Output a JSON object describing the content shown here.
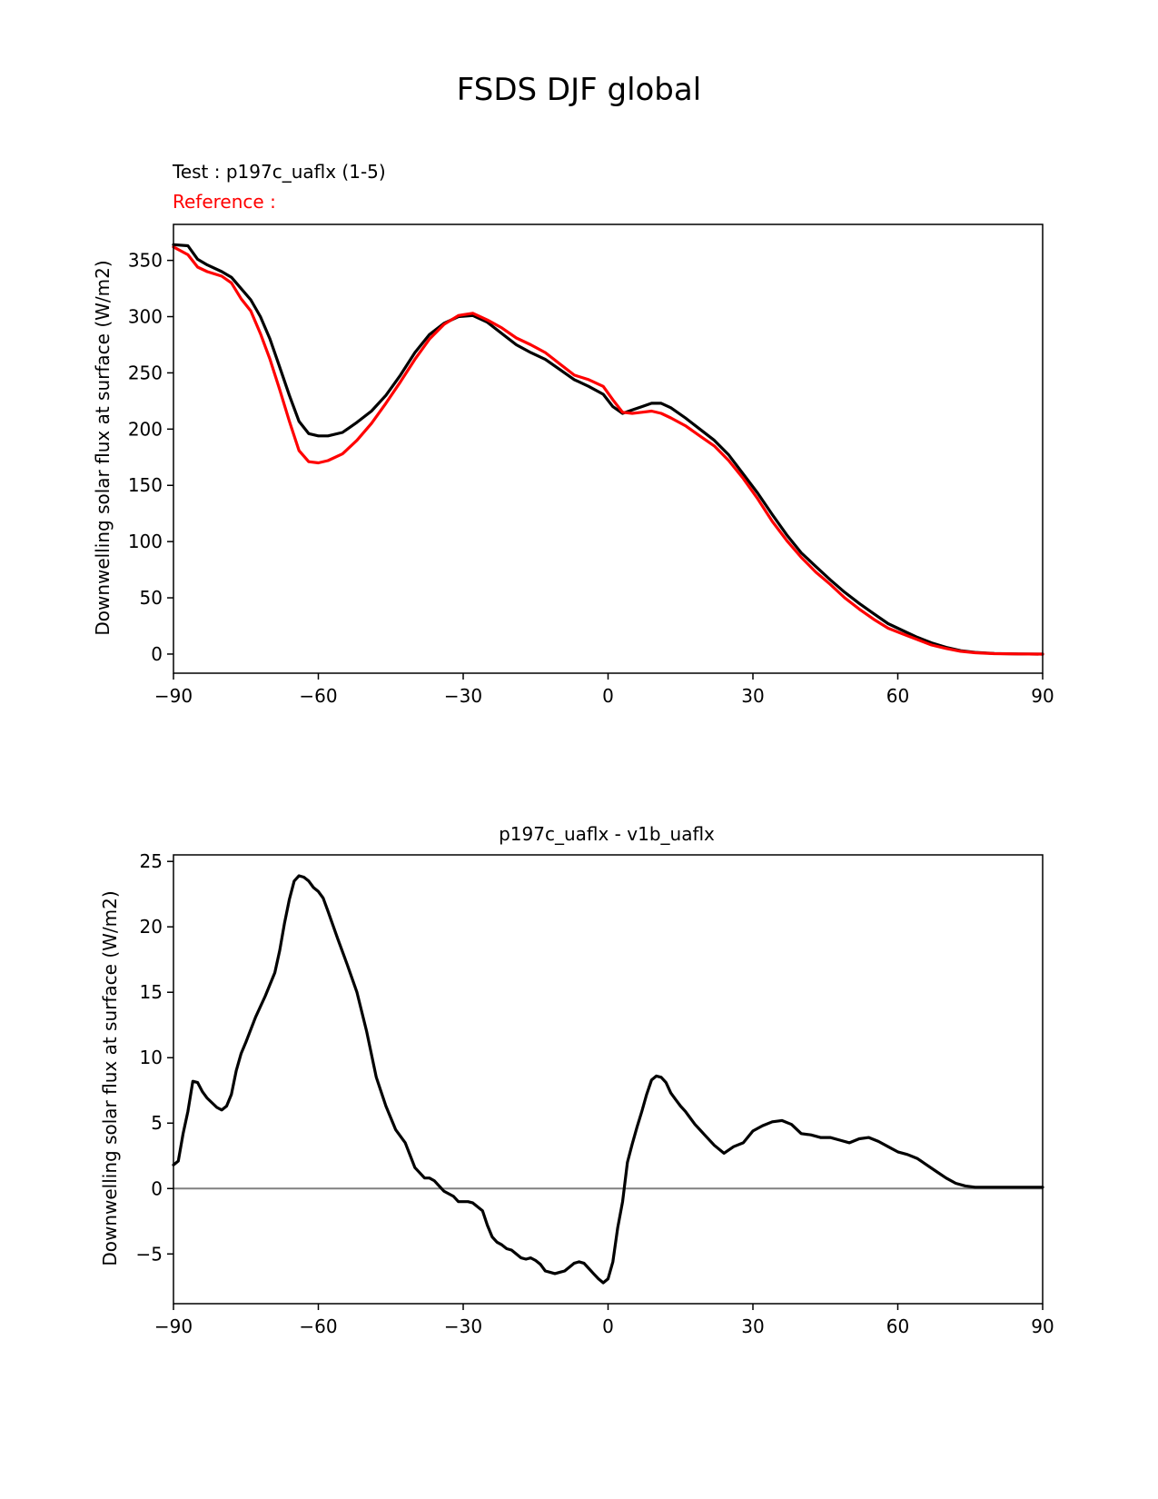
{
  "figure": {
    "title": "FSDS DJF global"
  },
  "chart_data": [
    {
      "type": "line",
      "test_label": "Test : p197c_uaflx (1-5)",
      "reference_label": "Reference :",
      "ylabel": "Downwelling solar flux at surface (W/m2)",
      "xlim": [
        -90,
        90
      ],
      "ylim": [
        -17,
        382
      ],
      "xticks": [
        -90,
        -60,
        -30,
        0,
        30,
        60,
        90
      ],
      "xtick_labels": [
        "−90",
        "−60",
        "−30",
        "0",
        "30",
        "60",
        "90"
      ],
      "yticks": [
        0,
        50,
        100,
        150,
        200,
        250,
        300,
        350
      ],
      "ytick_labels": [
        "0",
        "50",
        "100",
        "150",
        "200",
        "250",
        "300",
        "350"
      ],
      "grid": false,
      "series": [
        {
          "color": "#000000",
          "x": [
            -90,
            -87,
            -85,
            -83,
            -80,
            -78,
            -76,
            -74,
            -72,
            -70,
            -68,
            -66,
            -64,
            -62,
            -60,
            -58,
            -55,
            -52,
            -49,
            -46,
            -43,
            -40,
            -37,
            -34,
            -31,
            -28,
            -25,
            -22,
            -19,
            -16,
            -13,
            -10,
            -7,
            -4,
            -1,
            1,
            3,
            5,
            7,
            9,
            11,
            13,
            16,
            19,
            22,
            25,
            28,
            31,
            34,
            37,
            40,
            43,
            46,
            49,
            52,
            55,
            58,
            61,
            64,
            67,
            70,
            73,
            76,
            80,
            85,
            90
          ],
          "y": [
            364,
            363,
            351,
            346,
            340,
            335,
            325,
            315,
            300,
            280,
            255,
            230,
            207,
            196,
            194,
            194,
            197,
            206,
            216,
            230,
            248,
            268,
            284,
            294,
            300,
            301,
            295,
            285,
            275,
            268,
            262,
            253,
            244,
            238,
            231,
            220,
            214,
            217,
            220,
            223,
            223,
            219,
            210,
            200,
            190,
            177,
            160,
            143,
            124,
            106,
            90,
            78,
            66,
            55,
            45,
            36,
            27,
            21,
            15,
            10,
            6,
            3,
            1.5,
            0.5,
            0.1,
            0
          ]
        },
        {
          "color": "#ff0000",
          "x": [
            -90,
            -87,
            -85,
            -83,
            -80,
            -78,
            -76,
            -74,
            -72,
            -70,
            -68,
            -66,
            -64,
            -62,
            -60,
            -58,
            -55,
            -52,
            -49,
            -46,
            -43,
            -40,
            -37,
            -34,
            -31,
            -28,
            -25,
            -22,
            -19,
            -16,
            -13,
            -10,
            -7,
            -4,
            -1,
            1,
            3,
            5,
            7,
            9,
            11,
            13,
            16,
            19,
            22,
            25,
            28,
            31,
            34,
            37,
            40,
            43,
            46,
            49,
            52,
            55,
            58,
            61,
            64,
            67,
            70,
            73,
            76,
            80,
            85,
            90
          ],
          "y": [
            362,
            355,
            344,
            340,
            336,
            330,
            316,
            305,
            285,
            262,
            235,
            207,
            181,
            171,
            170,
            172,
            178,
            190,
            205,
            223,
            242,
            262,
            280,
            293,
            301,
            303,
            297,
            290,
            281,
            275,
            268,
            258,
            248,
            244,
            238,
            226,
            215,
            214,
            215,
            216,
            214,
            210,
            203,
            194,
            185,
            172,
            156,
            138,
            118,
            101,
            86,
            73,
            62,
            50,
            40,
            31,
            23,
            18,
            13,
            8,
            5,
            2.5,
            1.2,
            0.4,
            0.1,
            0
          ]
        }
      ]
    },
    {
      "type": "line",
      "title": "p197c_uaflx - v1b_uaflx",
      "ylabel": "Downwelling solar flux at surface (W/m2)",
      "xlim": [
        -90,
        90
      ],
      "ylim": [
        -8.8,
        25.5
      ],
      "xticks": [
        -90,
        -60,
        -30,
        0,
        30,
        60,
        90
      ],
      "xtick_labels": [
        "−90",
        "−60",
        "−30",
        "0",
        "30",
        "60",
        "90"
      ],
      "yticks": [
        -5,
        0,
        5,
        10,
        15,
        20,
        25
      ],
      "ytick_labels": [
        "−5",
        "0",
        "5",
        "10",
        "15",
        "20",
        "25"
      ],
      "zero_line": 0,
      "grid": false,
      "series": [
        {
          "color": "#000000",
          "x": [
            -90,
            -89,
            -88,
            -87,
            -86,
            -85,
            -84,
            -83,
            -81,
            -80,
            -79,
            -78,
            -77,
            -76,
            -75,
            -73,
            -71,
            -69,
            -68,
            -67,
            -66,
            -65,
            -64,
            -63,
            -62,
            -61,
            -60,
            -59,
            -58,
            -56,
            -54,
            -52,
            -50,
            -48,
            -46,
            -44,
            -42,
            -40,
            -38,
            -37,
            -36,
            -34,
            -32,
            -31,
            -30,
            -29,
            -28,
            -26,
            -25,
            -24,
            -23,
            -22,
            -21,
            -20,
            -18,
            -17,
            -16,
            -15,
            -14,
            -13,
            -12,
            -11,
            -10,
            -9,
            -8,
            -7,
            -6,
            -5,
            -4,
            -3,
            -2,
            -1,
            0,
            1,
            2,
            3,
            4,
            5,
            6,
            7,
            8,
            9,
            10,
            11,
            12,
            13,
            14,
            15,
            16,
            17,
            18,
            19,
            20,
            22,
            24,
            26,
            28,
            30,
            32,
            34,
            36,
            38,
            40,
            42,
            44,
            46,
            48,
            50,
            52,
            54,
            56,
            58,
            60,
            62,
            64,
            66,
            68,
            70,
            72,
            74,
            76,
            80,
            85,
            90
          ],
          "y": [
            1.8,
            2.1,
            4.2,
            5.9,
            8.2,
            8.1,
            7.4,
            6.9,
            6.2,
            6.0,
            6.3,
            7.2,
            9.0,
            10.3,
            11.2,
            13.1,
            14.7,
            16.5,
            18.2,
            20.3,
            22.1,
            23.5,
            23.9,
            23.8,
            23.5,
            23.0,
            22.7,
            22.2,
            21.2,
            19.1,
            17.1,
            15.0,
            12.0,
            8.5,
            6.3,
            4.5,
            3.5,
            1.6,
            0.8,
            0.8,
            0.6,
            -0.2,
            -0.6,
            -1.0,
            -1.0,
            -1.0,
            -1.1,
            -1.7,
            -2.8,
            -3.7,
            -4.1,
            -4.3,
            -4.6,
            -4.7,
            -5.3,
            -5.4,
            -5.3,
            -5.5,
            -5.8,
            -6.3,
            -6.4,
            -6.5,
            -6.4,
            -6.3,
            -6.0,
            -5.7,
            -5.6,
            -5.7,
            -6.1,
            -6.5,
            -6.9,
            -7.2,
            -6.9,
            -5.6,
            -3.0,
            -1.0,
            2.0,
            3.4,
            4.7,
            5.9,
            7.2,
            8.3,
            8.6,
            8.5,
            8.1,
            7.3,
            6.8,
            6.3,
            5.9,
            5.4,
            4.9,
            4.5,
            4.1,
            3.3,
            2.7,
            3.2,
            3.5,
            4.4,
            4.8,
            5.1,
            5.2,
            4.9,
            4.2,
            4.1,
            3.9,
            3.9,
            3.7,
            3.5,
            3.8,
            3.9,
            3.6,
            3.2,
            2.8,
            2.6,
            2.3,
            1.8,
            1.3,
            0.8,
            0.4,
            0.2,
            0.1,
            0.1,
            0.1,
            0.1
          ]
        }
      ]
    }
  ]
}
